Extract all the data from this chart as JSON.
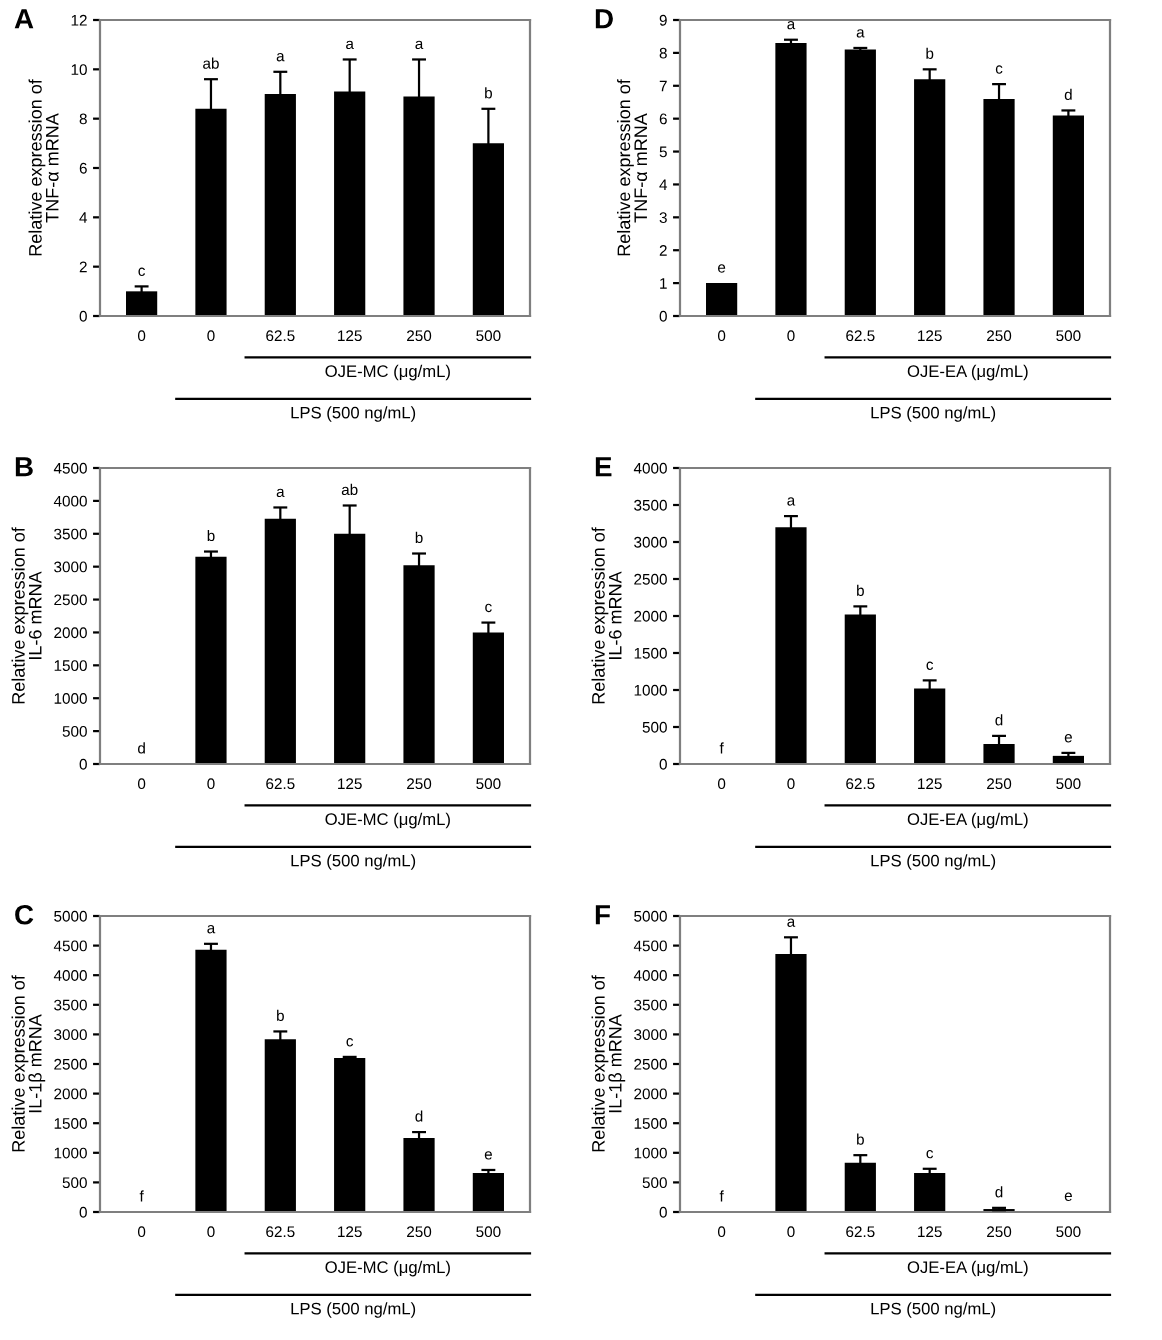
{
  "chart_data": [
    {
      "type": "bar",
      "title": "A",
      "ylabel": "Relative expression of\nTNF-α mRNA",
      "categories": [
        "0",
        "0",
        "62.5",
        "125",
        "250",
        "500"
      ],
      "values": [
        1.0,
        8.4,
        9.0,
        9.1,
        8.9,
        7.0
      ],
      "errors": [
        0.2,
        1.2,
        0.9,
        1.3,
        1.5,
        1.4
      ],
      "value_labels": [
        "c",
        "ab",
        "a",
        "a",
        "a",
        "b"
      ],
      "color": "#000000",
      "ylim": [
        0,
        12
      ],
      "yticks": [
        0,
        2,
        4,
        6,
        8,
        10,
        12
      ],
      "grid": false,
      "annotations": [
        "OJE-MC (μg/mL)",
        "LPS (500 ng/mL)"
      ]
    },
    {
      "type": "bar",
      "title": "D",
      "ylabel": "Relative expression of\nTNF-α mRNA",
      "categories": [
        "0",
        "0",
        "62.5",
        "125",
        "250",
        "500"
      ],
      "values": [
        1.0,
        8.3,
        8.1,
        7.2,
        6.6,
        6.1
      ],
      "errors": [
        null,
        0.1,
        0.05,
        0.3,
        0.45,
        0.15
      ],
      "value_labels": [
        "e",
        "a",
        "a",
        "b",
        "c",
        "d"
      ],
      "color": "#000000",
      "ylim": [
        0,
        9
      ],
      "yticks": [
        0,
        1,
        2,
        3,
        4,
        5,
        6,
        7,
        8,
        9
      ],
      "grid": false,
      "annotations": [
        "OJE-EA (μg/mL)",
        "LPS (500 ng/mL)"
      ]
    },
    {
      "type": "bar",
      "title": "B",
      "ylabel": "Relative expression of\nIL-6 mRNA",
      "categories": [
        "0",
        "0",
        "62.5",
        "125",
        "250",
        "500"
      ],
      "values": [
        0,
        3150,
        3730,
        3500,
        3020,
        2000
      ],
      "errors": [
        null,
        80,
        170,
        430,
        180,
        150
      ],
      "value_labels": [
        "d",
        "b",
        "a",
        "ab",
        "b",
        "c"
      ],
      "color": "#000000",
      "ylim": [
        0,
        4500
      ],
      "yticks": [
        0,
        500,
        1000,
        1500,
        2000,
        2500,
        3000,
        3500,
        4000,
        4500
      ],
      "grid": false,
      "annotations": [
        "OJE-MC (μg/mL)",
        "LPS (500 ng/mL)"
      ]
    },
    {
      "type": "bar",
      "title": "E",
      "ylabel": "Relative expression of\nIL-6 mRNA",
      "categories": [
        "0",
        "0",
        "62.5",
        "125",
        "250",
        "500"
      ],
      "values": [
        0,
        3200,
        2020,
        1020,
        270,
        110
      ],
      "errors": [
        null,
        150,
        110,
        110,
        110,
        40
      ],
      "value_labels": [
        "f",
        "a",
        "b",
        "c",
        "d",
        "e"
      ],
      "color": "#000000",
      "ylim": [
        0,
        4000
      ],
      "yticks": [
        0,
        500,
        1000,
        1500,
        2000,
        2500,
        3000,
        3500,
        4000
      ],
      "grid": false,
      "annotations": [
        "OJE-EA (μg/mL)",
        "LPS (500 ng/mL)"
      ]
    },
    {
      "type": "bar",
      "title": "C",
      "ylabel": "Relative expression of\nIL-1β mRNA",
      "categories": [
        "0",
        "0",
        "62.5",
        "125",
        "250",
        "500"
      ],
      "values": [
        0,
        4430,
        2920,
        2600,
        1250,
        660
      ],
      "errors": [
        null,
        100,
        130,
        20,
        100,
        50
      ],
      "value_labels": [
        "f",
        "a",
        "b",
        "c",
        "d",
        "e"
      ],
      "color": "#000000",
      "ylim": [
        0,
        5000
      ],
      "yticks": [
        0,
        500,
        1000,
        1500,
        2000,
        2500,
        3000,
        3500,
        4000,
        4500,
        5000
      ],
      "grid": false,
      "annotations": [
        "OJE-MC (μg/mL)",
        "LPS (500 ng/mL)"
      ]
    },
    {
      "type": "bar",
      "title": "F",
      "ylabel": "Relative expression of\nIL-1β mRNA",
      "categories": [
        "0",
        "0",
        "62.5",
        "125",
        "250",
        "500"
      ],
      "values": [
        0,
        4360,
        830,
        660,
        50,
        10
      ],
      "errors": [
        null,
        280,
        130,
        70,
        20,
        null
      ],
      "value_labels": [
        "f",
        "a",
        "b",
        "c",
        "d",
        "e"
      ],
      "color": "#000000",
      "ylim": [
        0,
        5000
      ],
      "yticks": [
        0,
        500,
        1000,
        1500,
        2000,
        2500,
        3000,
        3500,
        4000,
        4500,
        5000
      ],
      "grid": false,
      "annotations": [
        "OJE-EA (μg/mL)",
        "LPS (500 ng/mL)"
      ]
    }
  ]
}
